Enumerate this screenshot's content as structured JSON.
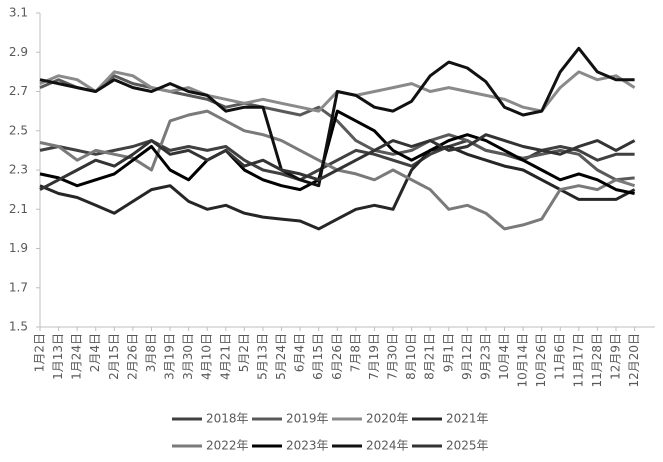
{
  "chart_data": {
    "type": "line",
    "categories": [
      "1月2日",
      "1月13日",
      "1月24日",
      "2月4日",
      "2月15日",
      "2月26日",
      "3月8日",
      "3月19日",
      "3月30日",
      "4月10日",
      "4月21日",
      "5月2日",
      "5月13日",
      "5月24日",
      "6月4日",
      "6月15日",
      "6月26日",
      "7月8日",
      "7月19日",
      "7月30日",
      "8月10日",
      "8月21日",
      "9月1日",
      "9月12日",
      "9月23日",
      "10月4日",
      "10月14日",
      "10月26日",
      "11月6日",
      "11月17日",
      "11月28日",
      "12月9日",
      "12月20日"
    ],
    "series": [
      {
        "name": "2018年",
        "color": "#404040",
        "values": [
          2.4,
          2.42,
          2.4,
          2.38,
          2.4,
          2.42,
          2.45,
          2.4,
          2.42,
          2.4,
          2.42,
          2.35,
          2.3,
          2.28,
          2.25,
          2.3,
          2.35,
          2.4,
          2.38,
          2.35,
          2.32,
          2.38,
          2.42,
          2.45,
          2.4,
          2.38,
          2.35,
          2.4,
          2.42,
          2.4,
          2.35,
          2.38,
          2.38
        ]
      },
      {
        "name": "2019年",
        "color": "#595959",
        "values": [
          2.72,
          2.76,
          2.72,
          2.7,
          2.78,
          2.74,
          2.72,
          2.7,
          2.68,
          2.66,
          2.62,
          2.64,
          2.62,
          2.6,
          2.58,
          2.62,
          2.55,
          2.45,
          2.4,
          2.38,
          2.4,
          2.45,
          2.48,
          2.45,
          2.4,
          2.38,
          2.36,
          2.38,
          2.4,
          2.38,
          2.3,
          2.25,
          2.26
        ]
      },
      {
        "name": "2020年",
        "color": "#8a8a8a",
        "values": [
          2.74,
          2.78,
          2.76,
          2.7,
          2.8,
          2.78,
          2.72,
          2.7,
          2.72,
          2.68,
          2.66,
          2.64,
          2.66,
          2.64,
          2.62,
          2.6,
          2.7,
          2.68,
          2.7,
          2.72,
          2.74,
          2.7,
          2.72,
          2.7,
          2.68,
          2.66,
          2.62,
          2.6,
          2.72,
          2.8,
          2.76,
          2.78,
          2.72
        ]
      },
      {
        "name": "2021年",
        "color": "#262626",
        "values": [
          2.22,
          2.18,
          2.16,
          2.12,
          2.08,
          2.14,
          2.2,
          2.22,
          2.14,
          2.1,
          2.12,
          2.08,
          2.06,
          2.05,
          2.04,
          2.0,
          2.05,
          2.1,
          2.12,
          2.1,
          2.3,
          2.4,
          2.42,
          2.38,
          2.35,
          2.32,
          2.3,
          2.25,
          2.2,
          2.15,
          2.15,
          2.15,
          2.2
        ]
      },
      {
        "name": "2022年",
        "color": "#7a7a7a",
        "values": [
          2.44,
          2.42,
          2.35,
          2.4,
          2.38,
          2.36,
          2.3,
          2.55,
          2.58,
          2.6,
          2.55,
          2.5,
          2.48,
          2.45,
          2.4,
          2.35,
          2.3,
          2.28,
          2.25,
          2.3,
          2.25,
          2.2,
          2.1,
          2.12,
          2.08,
          2.0,
          2.02,
          2.05,
          2.2,
          2.22,
          2.2,
          2.25,
          2.22
        ]
      },
      {
        "name": "2023年",
        "color": "#000000",
        "values": [
          2.28,
          2.26,
          2.22,
          2.25,
          2.28,
          2.35,
          2.42,
          2.3,
          2.25,
          2.35,
          2.4,
          2.3,
          2.25,
          2.22,
          2.2,
          2.25,
          2.6,
          2.55,
          2.5,
          2.4,
          2.35,
          2.4,
          2.45,
          2.48,
          2.45,
          2.4,
          2.35,
          2.3,
          2.25,
          2.28,
          2.25,
          2.2,
          2.18
        ]
      },
      {
        "name": "2024年",
        "color": "#111111",
        "values": [
          2.76,
          2.74,
          2.72,
          2.7,
          2.76,
          2.72,
          2.7,
          2.74,
          2.7,
          2.68,
          2.6,
          2.62,
          2.62,
          2.3,
          2.25,
          2.22,
          2.7,
          2.68,
          2.62,
          2.6,
          2.65,
          2.78,
          2.85,
          2.82,
          2.75,
          2.62,
          2.58,
          2.6,
          2.8,
          2.92,
          2.8,
          2.76,
          2.76
        ]
      },
      {
        "name": "2025年",
        "color": "#333333",
        "values": [
          2.2,
          2.25,
          2.3,
          2.35,
          2.32,
          2.38,
          2.45,
          2.38,
          2.4,
          2.35,
          2.4,
          2.32,
          2.35,
          2.3,
          2.28,
          2.25,
          2.3,
          2.35,
          2.4,
          2.45,
          2.42,
          2.45,
          2.4,
          2.42,
          2.48,
          2.45,
          2.42,
          2.4,
          2.38,
          2.42,
          2.45,
          2.4,
          2.45
        ]
      }
    ],
    "ylim": [
      1.5,
      3.1
    ],
    "yticks": [
      1.5,
      1.7,
      1.9,
      2.1,
      2.3,
      2.5,
      2.7,
      2.9,
      3.1
    ],
    "grid": false,
    "legend": "bottom"
  }
}
